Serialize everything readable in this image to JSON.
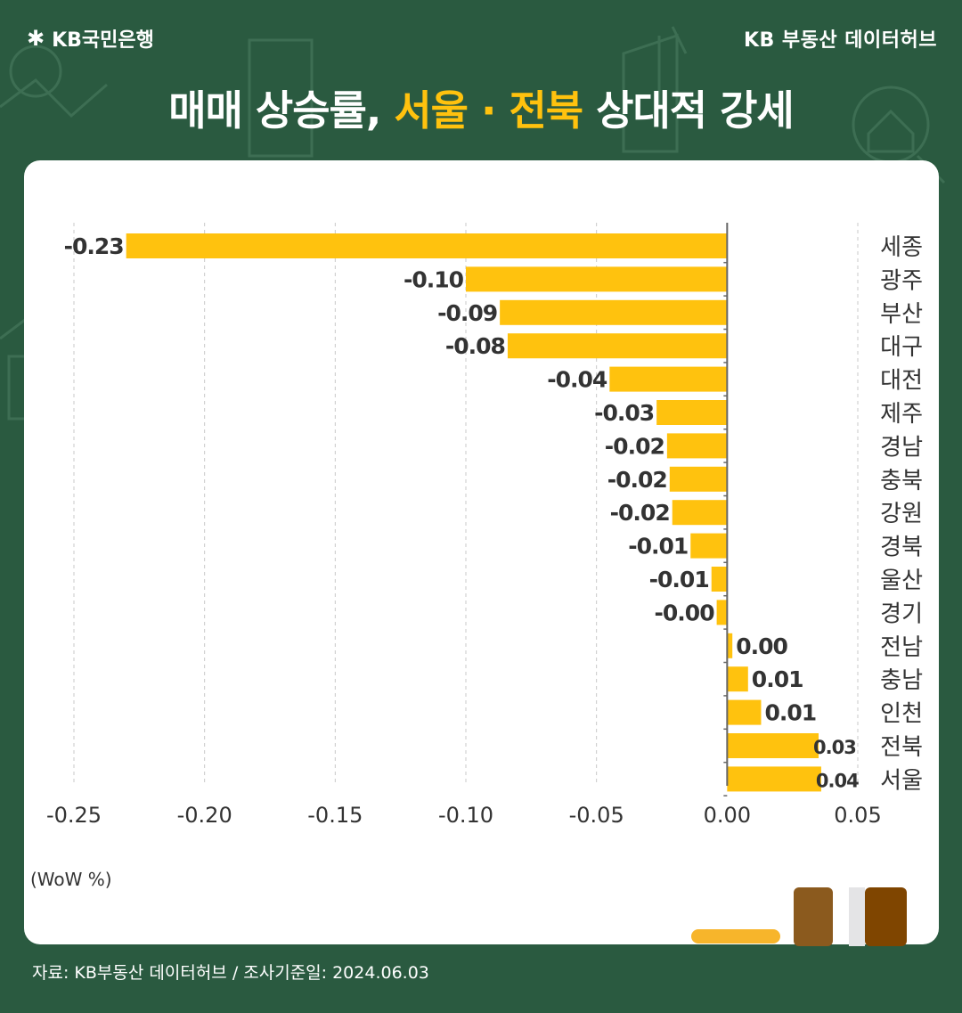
{
  "brand": {
    "bank_name": "KB국민은행",
    "hub_name": "KB 부동산  데이터허브"
  },
  "headline": {
    "part1": "매매 상승률, ",
    "highlight": "서울 · 전북",
    "part2": " 상대적 강세"
  },
  "unit_label": "(WoW %)",
  "footer": {
    "source": "자료: KB부동산 데이터허브 / 조사기준일: 2024.06.03"
  },
  "colors": {
    "background": "#2a5a40",
    "bar": "#ffc20e",
    "highlight": "#ffc20e"
  },
  "chart_data": {
    "type": "bar",
    "orientation": "horizontal",
    "categories": [
      "세종",
      "광주",
      "부산",
      "대구",
      "대전",
      "제주",
      "경남",
      "충북",
      "강원",
      "경북",
      "울산",
      "경기",
      "전남",
      "충남",
      "인천",
      "전북",
      "서울"
    ],
    "values": [
      -0.23,
      -0.1,
      -0.087,
      -0.084,
      -0.045,
      -0.027,
      -0.023,
      -0.022,
      -0.021,
      -0.014,
      -0.006,
      -0.004,
      0.002,
      0.008,
      0.013,
      0.035,
      0.036
    ],
    "data_labels": [
      "-0.23",
      "-0.10",
      "-0.09",
      "-0.08",
      "-0.04",
      "-0.03",
      "-0.02",
      "-0.02",
      "-0.02",
      "-0.01",
      "-0.01",
      "-0.00",
      "0.00",
      "0.01",
      "0.01",
      "0.03",
      "0.04"
    ],
    "x_ticks": [
      "-0.25",
      "-0.20",
      "-0.15",
      "-0.10",
      "-0.05",
      "0.00",
      "0.05"
    ],
    "xlim": [
      -0.25,
      0.05
    ],
    "grid": "vertical-dashed",
    "legend": "none"
  }
}
